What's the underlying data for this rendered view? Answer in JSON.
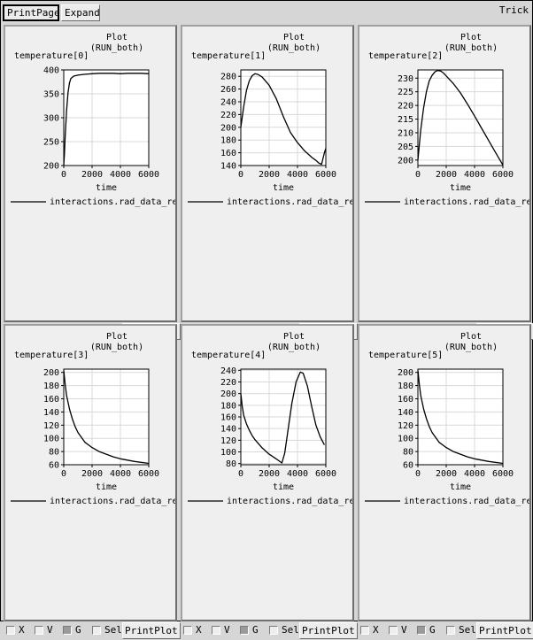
{
  "toolbar": {
    "print_page_label": "PrintPage",
    "expand_label": "Expand",
    "app_name": "Trick"
  },
  "controls": {
    "x_label": "X",
    "v_label": "V",
    "g_label": "G",
    "sel_label": "Sel",
    "print_plot_label": "PrintPlot"
  },
  "panels": [
    {
      "title": "Plot",
      "subtitle": "(RUN_both)",
      "ylabel": "temperature[0]",
      "xlabel": "time",
      "legend": "interactions.rad_data_re",
      "x_checked": false,
      "v_checked": false,
      "g_checked": true,
      "sel_checked": false,
      "chart_data": {
        "type": "line",
        "title": "Plot",
        "subtitle": "(RUN_both)",
        "xlabel": "time",
        "ylabel": "temperature[0]",
        "xlim": [
          0,
          6000
        ],
        "ylim": [
          200,
          400
        ],
        "xticks": [
          0,
          2000,
          4000,
          6000
        ],
        "yticks": [
          200,
          250,
          300,
          350,
          400
        ],
        "grid": true,
        "legend_position": "bottom",
        "series": [
          {
            "name": "interactions.rad_data_re",
            "x": [
              0,
              50,
              100,
              200,
              300,
              400,
              500,
              700,
              1000,
              1500,
              2000,
              2500,
              3000,
              3500,
              4000,
              4500,
              5000,
              5500,
              6000
            ],
            "y": [
              200,
              225,
              260,
              315,
              352,
              372,
              382,
              387,
              389,
              391,
              392,
              393,
              393,
              393,
              392,
              393,
              393,
              393,
              392
            ]
          }
        ]
      }
    },
    {
      "title": "Plot",
      "subtitle": "(RUN_both)",
      "ylabel": "temperature[1]",
      "xlabel": "time",
      "legend": "interactions.rad_data_re",
      "x_checked": false,
      "v_checked": false,
      "g_checked": true,
      "sel_checked": false,
      "chart_data": {
        "type": "line",
        "title": "Plot",
        "subtitle": "(RUN_both)",
        "xlabel": "time",
        "ylabel": "temperature[1]",
        "xlim": [
          0,
          6000
        ],
        "ylim": [
          140,
          290
        ],
        "xticks": [
          0,
          2000,
          4000,
          6000
        ],
        "yticks": [
          140,
          160,
          180,
          200,
          220,
          240,
          260,
          280
        ],
        "grid": true,
        "legend_position": "bottom",
        "series": [
          {
            "name": "interactions.rad_data_re",
            "x": [
              0,
              200,
              400,
              600,
              800,
              1000,
              1200,
              1500,
              2000,
              2500,
              3000,
              3500,
              4000,
              4500,
              5000,
              5300,
              5500,
              5700,
              5900,
              6000
            ],
            "y": [
              200,
              232,
              258,
              273,
              281,
              284,
              283,
              279,
              266,
              245,
              217,
              192,
              176,
              163,
              153,
              148,
              144,
              142,
              160,
              167
            ]
          }
        ]
      }
    },
    {
      "title": "Plot",
      "subtitle": "(RUN_both)",
      "ylabel": "temperature[2]",
      "xlabel": "time",
      "legend": "interactions.rad_data_re",
      "x_checked": false,
      "v_checked": false,
      "g_checked": true,
      "sel_checked": false,
      "chart_data": {
        "type": "line",
        "title": "Plot",
        "subtitle": "(RUN_both)",
        "xlabel": "time",
        "ylabel": "temperature[2]",
        "xlim": [
          0,
          6000
        ],
        "ylim": [
          198,
          233
        ],
        "xticks": [
          0,
          2000,
          4000,
          6000
        ],
        "yticks": [
          200,
          205,
          210,
          215,
          220,
          225,
          230
        ],
        "grid": true,
        "legend_position": "bottom",
        "series": [
          {
            "name": "interactions.rad_data_re",
            "x": [
              0,
              200,
              400,
              600,
              800,
              1000,
              1200,
              1400,
              1600,
              1800,
              2000,
              2500,
              3000,
              3500,
              4000,
              4500,
              5000,
              5500,
              6000
            ],
            "y": [
              200,
              211,
              219,
              225,
              229,
              231,
              232.3,
              232.8,
              232.6,
              231.9,
              230.8,
              228,
              224.6,
              220.5,
              216.1,
              211.6,
              207.1,
              202.6,
              198.2
            ]
          }
        ]
      }
    },
    {
      "title": "Plot",
      "subtitle": "(RUN_both)",
      "ylabel": "temperature[3]",
      "xlabel": "time",
      "legend": "interactions.rad_data_re",
      "x_checked": false,
      "v_checked": false,
      "g_checked": true,
      "sel_checked": false,
      "chart_data": {
        "type": "line",
        "title": "Plot",
        "subtitle": "(RUN_both)",
        "xlabel": "time",
        "ylabel": "temperature[3]",
        "xlim": [
          0,
          6000
        ],
        "ylim": [
          60,
          205
        ],
        "xticks": [
          0,
          2000,
          4000,
          6000
        ],
        "yticks": [
          60,
          80,
          100,
          120,
          140,
          160,
          180,
          200
        ],
        "grid": true,
        "legend_position": "bottom",
        "series": [
          {
            "name": "interactions.rad_data_re",
            "x": [
              0,
              100,
              200,
              400,
              600,
              800,
              1000,
              1500,
              2000,
              2500,
              3000,
              3500,
              4000,
              5000,
              6000
            ],
            "y": [
              203,
              182,
              165,
              145,
              130,
              118,
              109,
              94,
              86,
              80,
              76,
              72,
              69,
              65,
              62
            ]
          }
        ]
      }
    },
    {
      "title": "Plot",
      "subtitle": "(RUN_both)",
      "ylabel": "temperature[4]",
      "xlabel": "time",
      "legend": "interactions.rad_data_re",
      "x_checked": false,
      "v_checked": false,
      "g_checked": true,
      "sel_checked": false,
      "chart_data": {
        "type": "line",
        "title": "Plot",
        "subtitle": "(RUN_both)",
        "xlabel": "time",
        "ylabel": "temperature[4]",
        "xlim": [
          0,
          6000
        ],
        "ylim": [
          78,
          242
        ],
        "xticks": [
          0,
          2000,
          4000,
          6000
        ],
        "yticks": [
          80,
          100,
          120,
          140,
          160,
          180,
          200,
          220,
          240
        ],
        "grid": true,
        "legend_position": "bottom",
        "series": [
          {
            "name": "interactions.rad_data_re",
            "x": [
              0,
              100,
              200,
              400,
              600,
              800,
              1000,
              1500,
              2000,
              2500,
              2900,
              3100,
              3300,
              3600,
              3900,
              4200,
              4400,
              4700,
              5000,
              5300,
              5600,
              5900
            ],
            "y": [
              200,
              178,
              163,
              148,
              137,
              128,
              121,
              107,
              96,
              88,
              81,
              98,
              132,
              183,
              220,
              237,
              235,
              213,
              178,
              146,
              126,
              112
            ]
          }
        ]
      }
    },
    {
      "title": "Plot",
      "subtitle": "(RUN_both)",
      "ylabel": "temperature[5]",
      "xlabel": "time",
      "legend": "interactions.rad_data_re",
      "x_checked": false,
      "v_checked": false,
      "g_checked": true,
      "sel_checked": false,
      "chart_data": {
        "type": "line",
        "title": "Plot",
        "subtitle": "(RUN_both)",
        "xlabel": "time",
        "ylabel": "temperature[5]",
        "xlim": [
          0,
          6000
        ],
        "ylim": [
          60,
          205
        ],
        "xticks": [
          0,
          2000,
          4000,
          6000
        ],
        "yticks": [
          60,
          80,
          100,
          120,
          140,
          160,
          180,
          200
        ],
        "grid": true,
        "legend_position": "bottom",
        "series": [
          {
            "name": "interactions.rad_data_re",
            "x": [
              0,
              100,
              200,
              400,
              600,
              800,
              1000,
              1500,
              2000,
              2500,
              3000,
              3500,
              4000,
              5000,
              6000
            ],
            "y": [
              203,
              182,
              165,
              145,
              130,
              118,
              109,
              94,
              86,
              80,
              76,
              72,
              69,
              65,
              62
            ]
          }
        ]
      }
    }
  ]
}
